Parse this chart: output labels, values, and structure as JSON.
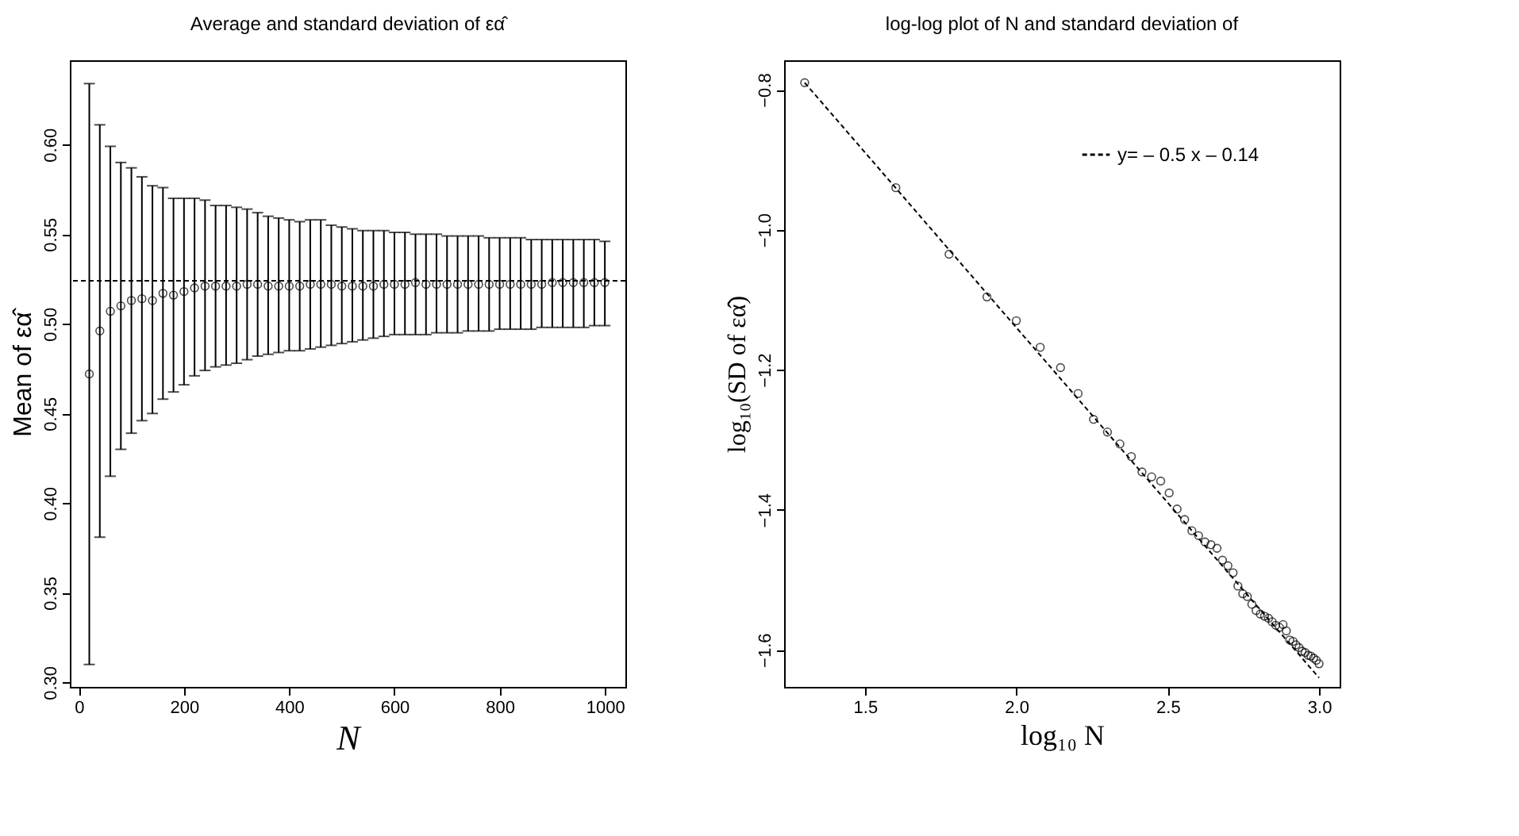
{
  "chart_data": [
    {
      "type": "scatter",
      "title": "Average and standard deviation of εα̂",
      "xlabel": "N",
      "ylabel": "Mean of εα̂",
      "x": [
        20,
        40,
        60,
        80,
        100,
        120,
        140,
        160,
        180,
        200,
        220,
        240,
        260,
        280,
        300,
        320,
        340,
        360,
        380,
        400,
        420,
        440,
        460,
        480,
        500,
        520,
        540,
        560,
        580,
        600,
        620,
        640,
        660,
        680,
        700,
        720,
        740,
        760,
        780,
        800,
        820,
        840,
        860,
        880,
        900,
        920,
        940,
        960,
        980,
        1000
      ],
      "series": [
        {
          "color": "#000000",
          "values": [
            0.472,
            0.496,
            0.507,
            0.51,
            0.513,
            0.514,
            0.513,
            0.517,
            0.516,
            0.518,
            0.52,
            0.521,
            0.521,
            0.521,
            0.521,
            0.522,
            0.522,
            0.521,
            0.521,
            0.521,
            0.521,
            0.522,
            0.522,
            0.522,
            0.521,
            0.521,
            0.521,
            0.521,
            0.522,
            0.522,
            0.522,
            0.523,
            0.522,
            0.522,
            0.522,
            0.522,
            0.522,
            0.522,
            0.522,
            0.522,
            0.522,
            0.522,
            0.522,
            0.522,
            0.523,
            0.523,
            0.523,
            0.523,
            0.523,
            0.523
          ],
          "errors": [
            [
              0.31,
              0.634
            ],
            [
              0.381,
              0.611
            ],
            [
              0.415,
              0.599
            ],
            [
              0.43,
              0.59
            ],
            [
              0.439,
              0.587
            ],
            [
              0.446,
              0.582
            ],
            [
              0.45,
              0.577
            ],
            [
              0.458,
              0.576
            ],
            [
              0.462,
              0.57
            ],
            [
              0.466,
              0.57
            ],
            [
              0.471,
              0.57
            ],
            [
              0.474,
              0.569
            ],
            [
              0.476,
              0.566
            ],
            [
              0.477,
              0.566
            ],
            [
              0.478,
              0.565
            ],
            [
              0.48,
              0.564
            ],
            [
              0.482,
              0.562
            ],
            [
              0.483,
              0.56
            ],
            [
              0.484,
              0.559
            ],
            [
              0.485,
              0.558
            ],
            [
              0.485,
              0.557
            ],
            [
              0.486,
              0.558
            ],
            [
              0.487,
              0.558
            ],
            [
              0.488,
              0.555
            ],
            [
              0.489,
              0.554
            ],
            [
              0.49,
              0.553
            ],
            [
              0.491,
              0.552
            ],
            [
              0.492,
              0.552
            ],
            [
              0.493,
              0.552
            ],
            [
              0.494,
              0.551
            ],
            [
              0.494,
              0.551
            ],
            [
              0.494,
              0.55
            ],
            [
              0.494,
              0.55
            ],
            [
              0.495,
              0.55
            ],
            [
              0.495,
              0.549
            ],
            [
              0.495,
              0.549
            ],
            [
              0.496,
              0.549
            ],
            [
              0.496,
              0.549
            ],
            [
              0.496,
              0.548
            ],
            [
              0.497,
              0.548
            ],
            [
              0.497,
              0.548
            ],
            [
              0.497,
              0.548
            ],
            [
              0.497,
              0.547
            ],
            [
              0.498,
              0.547
            ],
            [
              0.498,
              0.547
            ],
            [
              0.498,
              0.547
            ],
            [
              0.498,
              0.547
            ],
            [
              0.498,
              0.547
            ],
            [
              0.499,
              0.547
            ],
            [
              0.499,
              0.546
            ]
          ]
        }
      ],
      "marker": "circle",
      "grid": false,
      "xlim": [
        -17,
        1039
      ],
      "xticks": [
        {
          "value": 0,
          "label": "0"
        },
        {
          "value": 200,
          "label": "200"
        },
        {
          "value": 400,
          "label": "400"
        },
        {
          "value": 600,
          "label": "600"
        },
        {
          "value": 800,
          "label": "800"
        },
        {
          "value": 1000,
          "label": "1000"
        }
      ],
      "ylim": [
        0.2975,
        0.647
      ],
      "yticks": [
        {
          "value": 0.3,
          "label": "0.30"
        },
        {
          "value": 0.35,
          "label": "0.35"
        },
        {
          "value": 0.4,
          "label": "0.40"
        },
        {
          "value": 0.45,
          "label": "0.45"
        },
        {
          "value": 0.5,
          "label": "0.50"
        },
        {
          "value": 0.55,
          "label": "0.55"
        },
        {
          "value": 0.6,
          "label": "0.60"
        }
      ],
      "ref_lines": [
        {
          "axis": "y",
          "value": 0.524,
          "line_style": "dashed",
          "color": "#000000"
        }
      ]
    },
    {
      "type": "scatter",
      "title": "log-log plot of N and standard deviation of",
      "xlabel": "log₁₀ N",
      "ylabel": "log₁₀(SD of εα̂)",
      "x": [
        1.301,
        1.602,
        1.778,
        1.903,
        2.0,
        2.079,
        2.146,
        2.204,
        2.255,
        2.301,
        2.342,
        2.38,
        2.415,
        2.447,
        2.477,
        2.505,
        2.531,
        2.556,
        2.58,
        2.602,
        2.623,
        2.643,
        2.663,
        2.681,
        2.699,
        2.716,
        2.732,
        2.748,
        2.763,
        2.778,
        2.792,
        2.806,
        2.82,
        2.833,
        2.845,
        2.857,
        2.869,
        2.881,
        2.892,
        2.903,
        2.914,
        2.924,
        2.934,
        2.944,
        2.954,
        2.964,
        2.973,
        2.982,
        2.991,
        3.0
      ],
      "series": [
        {
          "type": "scatter",
          "color": "#000000",
          "marker": "circle",
          "values": [
            -0.79,
            -0.94,
            -1.035,
            -1.096,
            -1.13,
            -1.168,
            -1.197,
            -1.234,
            -1.271,
            -1.289,
            -1.306,
            -1.324,
            -1.346,
            -1.353,
            -1.359,
            -1.376,
            -1.399,
            -1.414,
            -1.43,
            -1.437,
            -1.446,
            -1.45,
            -1.455,
            -1.472,
            -1.48,
            -1.49,
            -1.509,
            -1.52,
            -1.524,
            -1.535,
            -1.544,
            -1.549,
            -1.552,
            -1.555,
            -1.56,
            -1.565,
            -1.568,
            -1.564,
            -1.573,
            -1.586,
            -1.588,
            -1.593,
            -1.597,
            -1.602,
            -1.604,
            -1.608,
            -1.609,
            -1.612,
            -1.615,
            -1.62
          ]
        },
        {
          "type": "line",
          "name": "y= – 0.5 x – 0.14",
          "color": "#000000",
          "line_style": "dashed",
          "marker": "none",
          "x": [
            1.301,
            3.0
          ],
          "values": [
            -0.79,
            -1.64
          ]
        }
      ],
      "grid": false,
      "legend": "top right",
      "xlim": [
        1.233,
        3.068
      ],
      "xticks": [
        {
          "value": 1.5,
          "label": "1.5"
        },
        {
          "value": 2.0,
          "label": "2.0"
        },
        {
          "value": 2.5,
          "label": "2.5"
        },
        {
          "value": 3.0,
          "label": "3.0"
        }
      ],
      "ylim": [
        -1.653,
        -0.758
      ],
      "yticks": [
        {
          "value": -1.6,
          "label": "−1.6"
        },
        {
          "value": -1.4,
          "label": "−1.4"
        },
        {
          "value": -1.2,
          "label": "−1.2"
        },
        {
          "value": -1.0,
          "label": "−1.0"
        },
        {
          "value": -0.8,
          "label": "−0.8"
        }
      ]
    }
  ]
}
